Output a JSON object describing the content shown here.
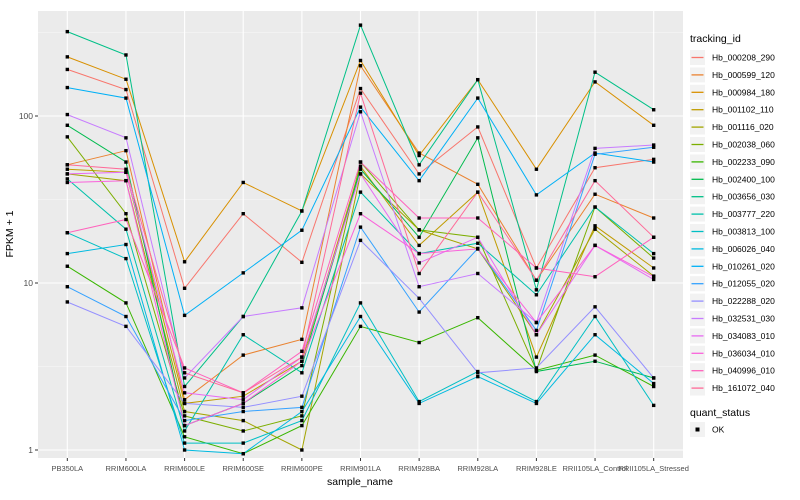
{
  "figure": {
    "y_axis_title": "FPKM + 1",
    "x_axis_title": "sample_name",
    "legend_tracking_title": "tracking_id",
    "legend_quant_title": "quant_status",
    "quant_status_label": "OK"
  },
  "colors": {
    "panel_bg": "#EBEBEB",
    "grid_major": "#FFFFFF",
    "grid_minor": "#F5F5F5",
    "point": "#000000",
    "axis_text": "#4D4D4D",
    "tick_mark": "#333333",
    "legend_key_bg": "#F2F2F2"
  },
  "chart_data": {
    "type": "line",
    "title": "",
    "xlabel": "sample_name",
    "ylabel": "FPKM + 1",
    "y_scale": "log10",
    "y_ticks": [
      1,
      10,
      100
    ],
    "y_tick_labels": [
      "1",
      "10",
      "100"
    ],
    "ylim": [
      0.9,
      420
    ],
    "grid": true,
    "legend_position": "right",
    "point_shape": "filled-square",
    "categories": [
      "PB350LA",
      "RRIM600LA",
      "RRIM600LE",
      "RRIM600SE",
      "RRIM600PE",
      "RRIM901LA",
      "RRIM928BA",
      "RRIM928LA",
      "RRIM928LE",
      "RRII105LA_Control",
      "RRII105LA_Stressed"
    ],
    "quant_status": "OK",
    "series": [
      {
        "name": "Hb_000208_290",
        "color": "#F8766D",
        "values": [
          190,
          144,
          9.3,
          26,
          13.3,
          146,
          45,
          86,
          12.3,
          49,
          55
        ]
      },
      {
        "name": "Hb_000599_120",
        "color": "#EA8331",
        "values": [
          51,
          62,
          2.0,
          3.7,
          4.6,
          200,
          60,
          39,
          10.4,
          34,
          24.5
        ]
      },
      {
        "name": "Hb_000984_180",
        "color": "#D89000",
        "values": [
          226,
          166,
          13.4,
          40,
          27,
          215,
          58,
          165,
          48,
          160,
          88
        ]
      },
      {
        "name": "Hb_001102_110",
        "color": "#C09B00",
        "values": [
          48,
          46,
          1.9,
          2.1,
          3.4,
          50,
          16.8,
          35,
          3.6,
          22,
          12.3
        ]
      },
      {
        "name": "Hb_001116_020",
        "color": "#A3A500",
        "values": [
          45,
          41,
          1.7,
          1.5,
          1.0,
          45,
          20.8,
          16,
          4.9,
          21,
          11
        ]
      },
      {
        "name": "Hb_002038_060",
        "color": "#7CAE00",
        "values": [
          75,
          26,
          1.6,
          1.3,
          1.6,
          53,
          20.8,
          18.8,
          3.0,
          28.5,
          14.1
        ]
      },
      {
        "name": "Hb_002233_090",
        "color": "#39B600",
        "values": [
          12.6,
          7.6,
          1.2,
          0.95,
          1.4,
          5.5,
          4.4,
          6.2,
          3.0,
          3.7,
          2.4
        ]
      },
      {
        "name": "Hb_002400_100",
        "color": "#00BB4E",
        "values": [
          88,
          53,
          1.4,
          1.9,
          3.2,
          48,
          18.8,
          74,
          2.95,
          3.4,
          2.7
        ]
      },
      {
        "name": "Hb_003656_030",
        "color": "#00C087",
        "values": [
          320,
          232,
          2.4,
          6.3,
          27,
          350,
          51,
          165,
          9.1,
          183,
          109
        ]
      },
      {
        "name": "Hb_003777_220",
        "color": "#00C1AB",
        "values": [
          42,
          21,
          1.3,
          4.9,
          2.9,
          35,
          15,
          17.3,
          8.5,
          28.5,
          15
        ]
      },
      {
        "name": "Hb_003813_100",
        "color": "#00BFC4",
        "values": [
          20,
          14,
          1.1,
          1.1,
          1.5,
          7.6,
          1.95,
          2.95,
          1.95,
          6.3,
          1.85
        ]
      },
      {
        "name": "Hb_006026_040",
        "color": "#00BAE0",
        "values": [
          15,
          17,
          1.0,
          0.95,
          1.7,
          6.3,
          1.9,
          2.75,
          1.9,
          4.9,
          2.5
        ]
      },
      {
        "name": "Hb_010261_020",
        "color": "#00B0F6",
        "values": [
          148,
          128,
          6.4,
          11.5,
          20.7,
          113,
          41,
          128,
          33.7,
          60,
          53
        ]
      },
      {
        "name": "Hb_012055_020",
        "color": "#35A2FF",
        "values": [
          9.5,
          6.3,
          1.5,
          1.7,
          1.8,
          21.6,
          6.7,
          16.1,
          5.2,
          59,
          65
        ]
      },
      {
        "name": "Hb_022288_020",
        "color": "#9590FF",
        "values": [
          7.7,
          5.5,
          1.9,
          1.8,
          2.1,
          18,
          8.1,
          2.9,
          3.1,
          7.2,
          2.7
        ]
      },
      {
        "name": "Hb_032531_030",
        "color": "#C77CFF",
        "values": [
          102,
          74,
          2.7,
          6.3,
          7.1,
          106,
          9.5,
          11.4,
          5.8,
          64,
          67
        ]
      },
      {
        "name": "Hb_034083_010",
        "color": "#E76BF3",
        "values": [
          45,
          46,
          2.2,
          2.0,
          3.6,
          45,
          13.2,
          18.8,
          4.9,
          16.8,
          10.5
        ]
      },
      {
        "name": "Hb_036034_010",
        "color": "#FA62DB",
        "values": [
          40,
          41,
          1.4,
          1.9,
          3.4,
          26,
          15,
          16,
          5.8,
          16.8,
          10.9
        ]
      },
      {
        "name": "Hb_040996_010",
        "color": "#FF62BC",
        "values": [
          20,
          24,
          3.1,
          2.2,
          3.9,
          53,
          24.5,
          24.5,
          12.3,
          10.9,
          18.8
        ]
      },
      {
        "name": "Hb_161072_040",
        "color": "#FF6A98",
        "values": [
          51,
          48,
          2.9,
          2.2,
          3.6,
          137,
          11.4,
          35,
          10.4,
          41,
          18.8
        ]
      }
    ]
  }
}
